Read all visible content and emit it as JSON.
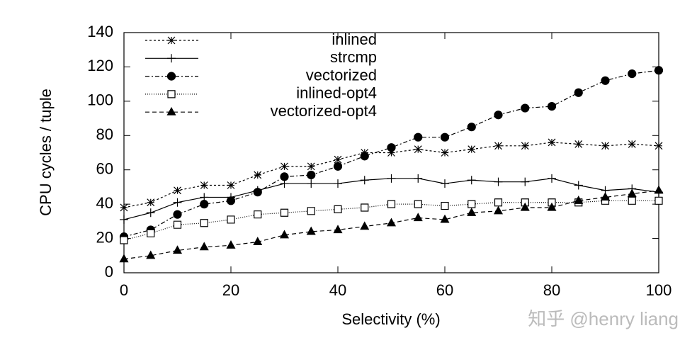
{
  "chart_data": {
    "type": "line",
    "xlabel": "Selectivity (%)",
    "ylabel": "CPU cycles / tuple",
    "x": [
      0,
      5,
      10,
      15,
      20,
      25,
      30,
      35,
      40,
      45,
      50,
      55,
      60,
      65,
      70,
      75,
      80,
      85,
      90,
      95,
      100
    ],
    "series": [
      {
        "name": "inlined",
        "color": "#000000",
        "marker": "star",
        "dash": "3,3",
        "values": [
          38,
          41,
          48,
          51,
          51,
          57,
          62,
          62,
          66,
          70,
          70,
          72,
          70,
          72,
          74,
          74,
          76,
          75,
          74,
          75,
          74
        ]
      },
      {
        "name": "strcmp",
        "color": "#000000",
        "marker": "plus",
        "dash": "none",
        "values": [
          31,
          35,
          41,
          44,
          44,
          48,
          52,
          52,
          52,
          54,
          55,
          55,
          52,
          54,
          53,
          53,
          55,
          51,
          48,
          49,
          47
        ]
      },
      {
        "name": "vectorized",
        "color": "#000000",
        "marker": "circle",
        "dash": "6,3,2,3",
        "values": [
          21,
          25,
          34,
          40,
          42,
          47,
          56,
          57,
          62,
          68,
          73,
          79,
          79,
          85,
          92,
          96,
          97,
          105,
          112,
          116,
          118
        ]
      },
      {
        "name": "inlined-opt4",
        "color": "#000000",
        "marker": "square",
        "dash": "1,2",
        "values": [
          19,
          23,
          28,
          29,
          31,
          34,
          35,
          36,
          37,
          38,
          40,
          40,
          39,
          40,
          41,
          41,
          41,
          41,
          42,
          42,
          42
        ]
      },
      {
        "name": "vectorized-opt4",
        "color": "#000000",
        "marker": "triangle",
        "dash": "6,4",
        "values": [
          8,
          10,
          13,
          15,
          16,
          18,
          22,
          24,
          25,
          27,
          29,
          32,
          31,
          35,
          36,
          38,
          38,
          42,
          44,
          46,
          48
        ]
      }
    ],
    "xlim": [
      0,
      100
    ],
    "xticks": [
      0,
      20,
      40,
      60,
      80,
      100
    ],
    "ylim": [
      0,
      140
    ],
    "yticks": [
      0,
      20,
      40,
      60,
      80,
      100,
      120,
      140
    ],
    "legend": "upper-left",
    "annotation": "知乎 @henry liang"
  }
}
